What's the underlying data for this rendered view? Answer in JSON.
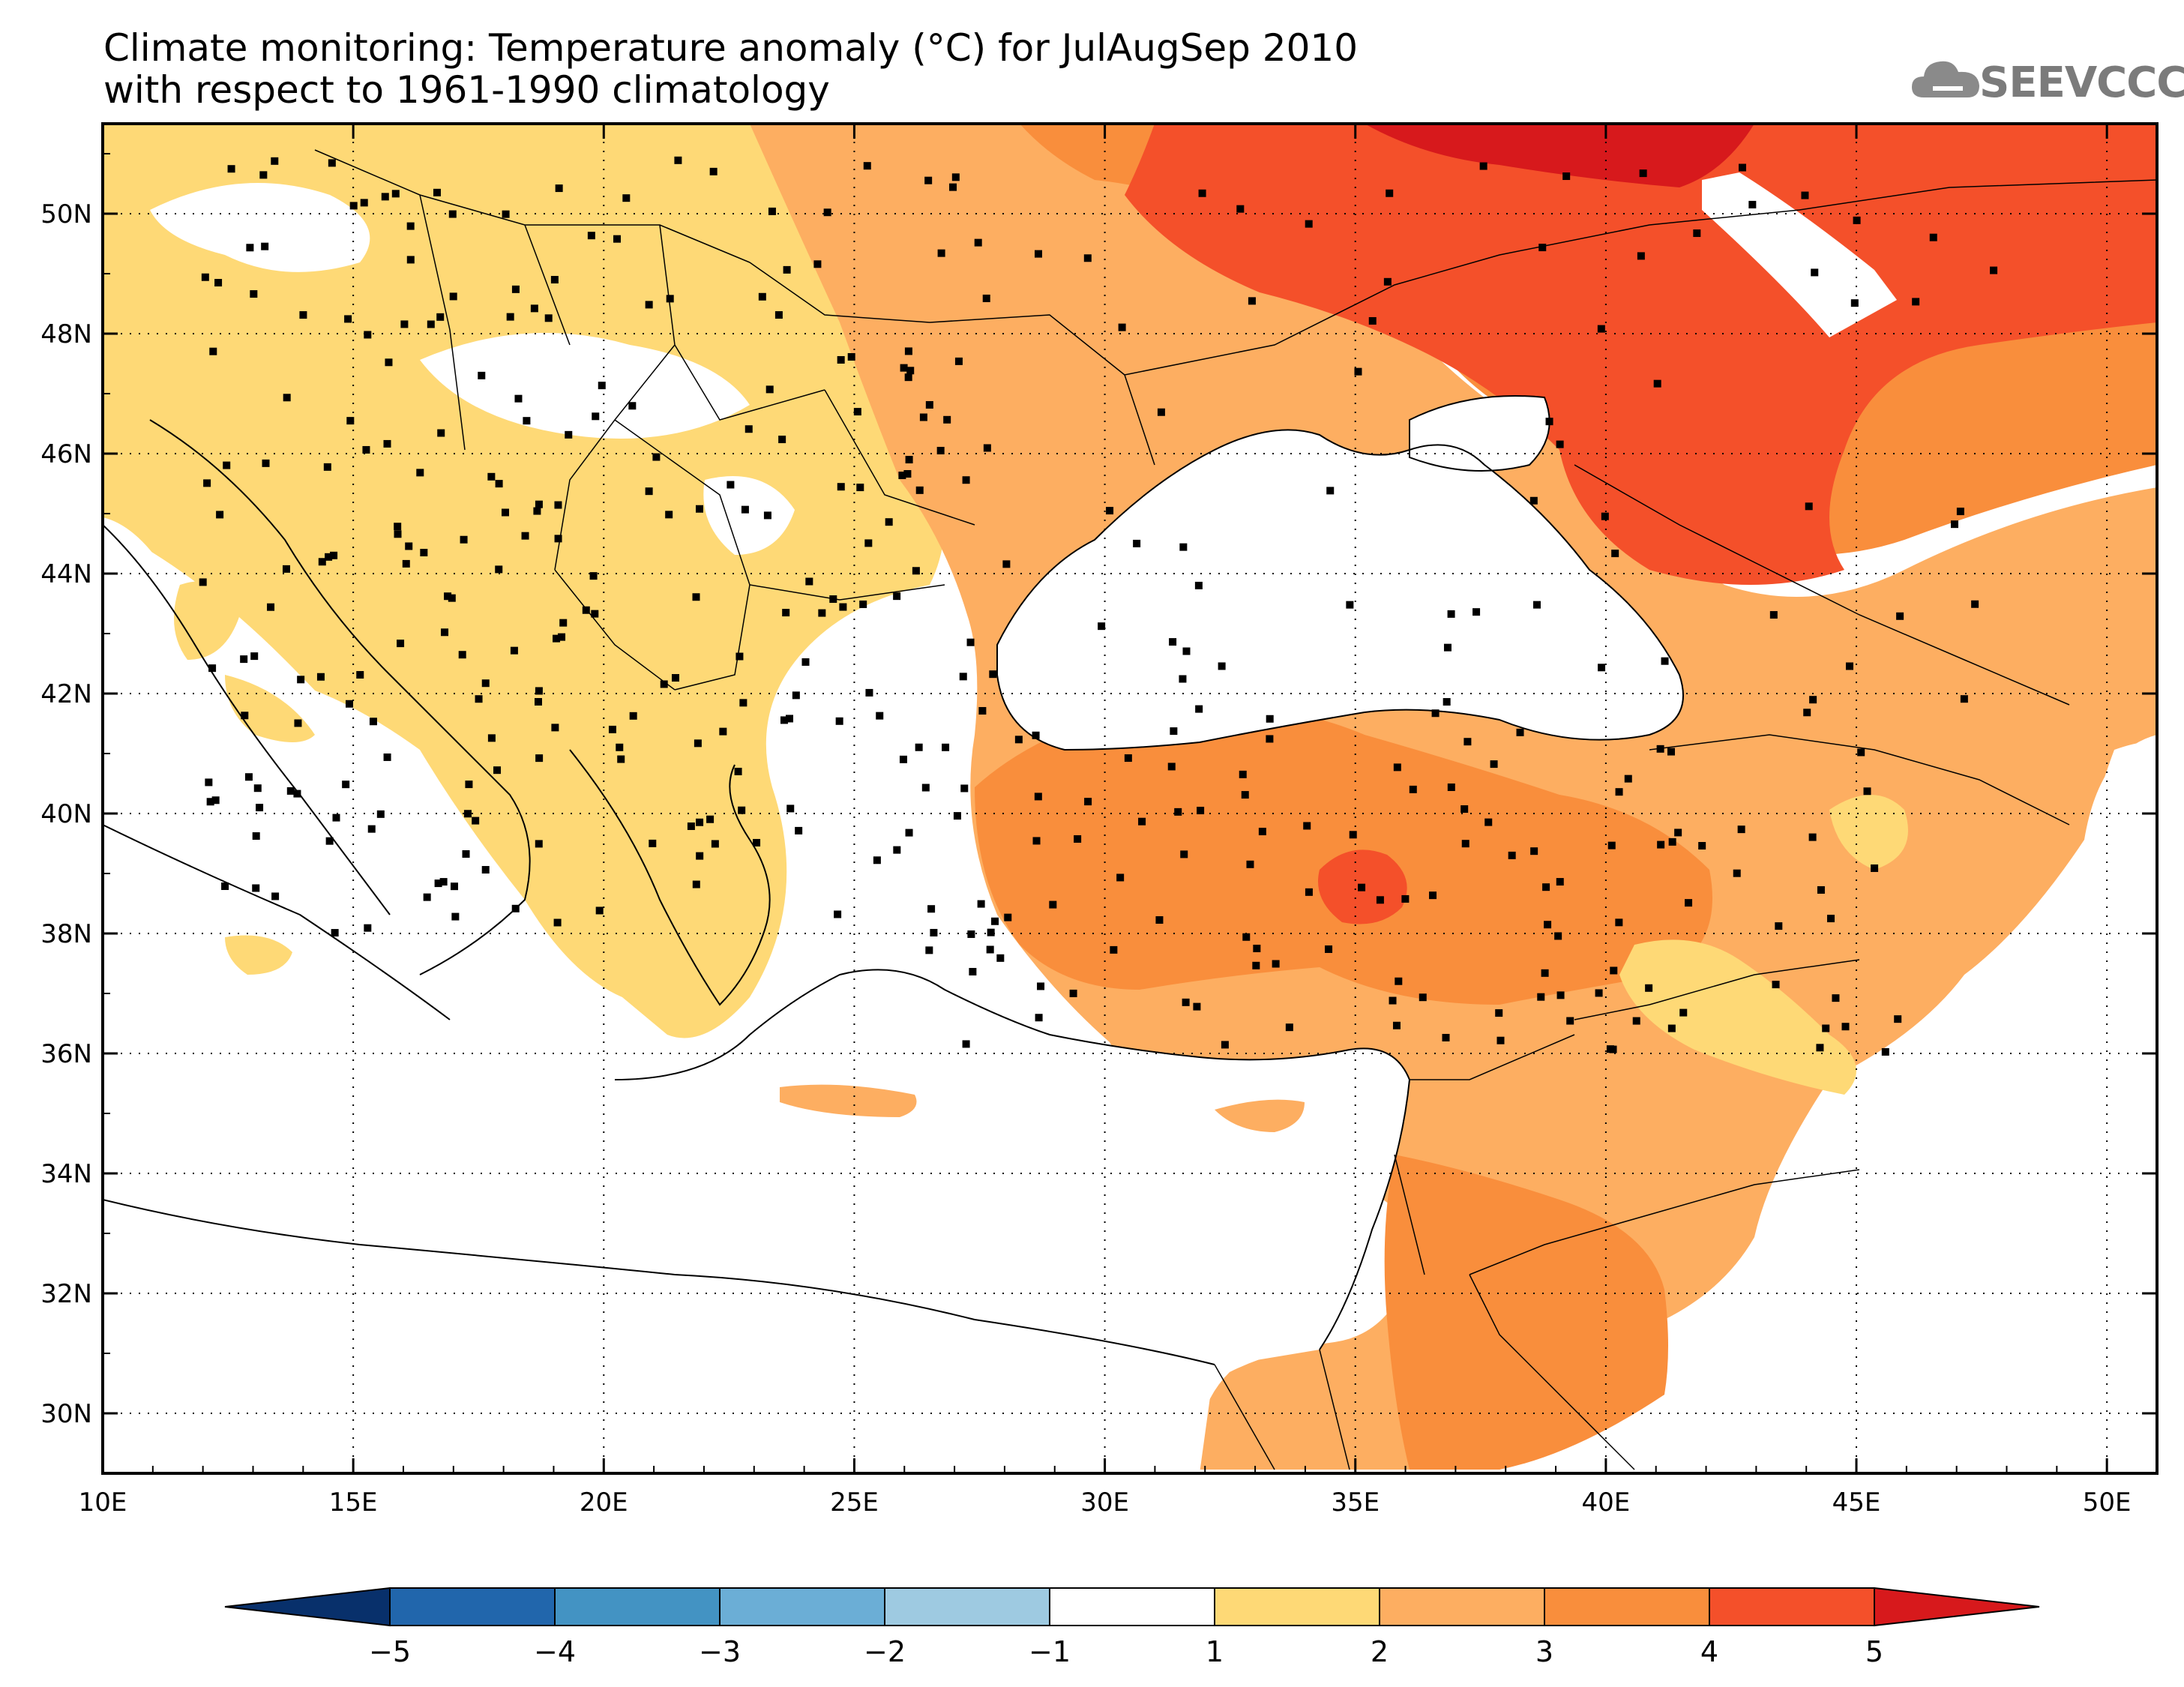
{
  "title": {
    "line1": "Climate monitoring: Temperature anomaly (°C) for JulAugSep 2010",
    "line2": "with respect to 1961-1990 climatology"
  },
  "logo": {
    "text": "SEEVCCC",
    "icon": "cloud-icon"
  },
  "map": {
    "lon_range": [
      10,
      51
    ],
    "lat_range": [
      29,
      51.5
    ],
    "x_ticks": [
      "10E",
      "15E",
      "20E",
      "25E",
      "30E",
      "35E",
      "40E",
      "45E",
      "50E"
    ],
    "x_tick_values": [
      10,
      15,
      20,
      25,
      30,
      35,
      40,
      45,
      50
    ],
    "y_ticks": [
      "30N",
      "32N",
      "34N",
      "36N",
      "38N",
      "40N",
      "42N",
      "44N",
      "46N",
      "48N",
      "50N"
    ],
    "y_tick_values": [
      30,
      32,
      34,
      36,
      38,
      40,
      42,
      44,
      46,
      48,
      50
    ],
    "gridlines": true
  },
  "colorbar": {
    "labels": [
      "-5",
      "-4",
      "-3",
      "-2",
      "-1",
      "1",
      "2",
      "3",
      "4",
      "5"
    ],
    "colors": [
      "#08306b",
      "#2166ac",
      "#4393c3",
      "#6baed6",
      "#9ecae1",
      "#ffffff",
      "#fed976",
      "#fdae61",
      "#f98e3c",
      "#f4502a",
      "#d7191c"
    ]
  },
  "palette": {
    "c1_2": "#fed976",
    "c2_3": "#fdae61",
    "c3_4": "#f98e3c",
    "c4_5": "#f4502a",
    "c5p": "#d7191c"
  }
}
